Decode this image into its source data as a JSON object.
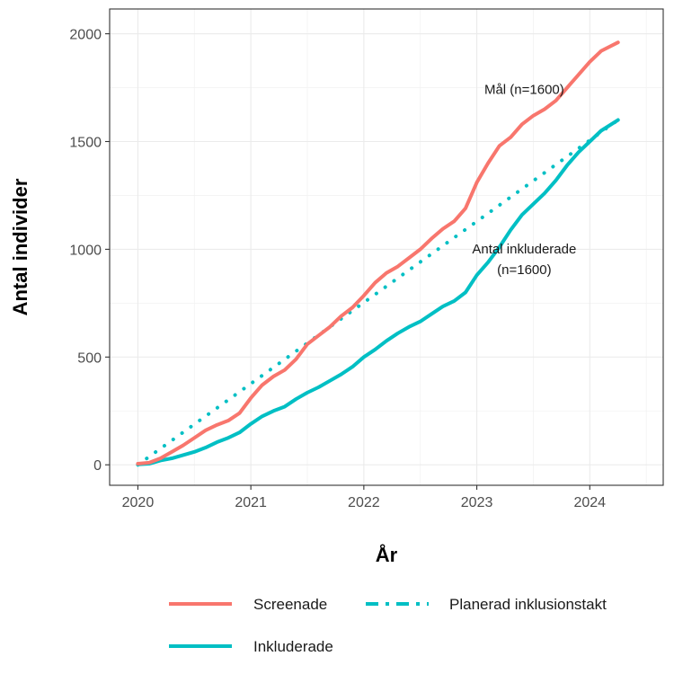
{
  "chart_data": {
    "type": "line",
    "xlabel": "År",
    "ylabel": "Antal individer",
    "xlim": [
      2019.75,
      2024.65
    ],
    "ylim": [
      -95,
      2115
    ],
    "x_ticks": [
      2020,
      2021,
      2022,
      2023,
      2024
    ],
    "y_ticks": [
      0,
      500,
      1000,
      1500,
      2000
    ],
    "x_tick_labels": [
      "2020",
      "2021",
      "2022",
      "2023",
      "2024"
    ],
    "y_tick_labels": [
      "0",
      "500",
      "1000",
      "1500",
      "2000"
    ],
    "grid": true,
    "legend_position": "bottom",
    "series": [
      {
        "name": "Screenade",
        "color": "#F8766D",
        "style": "solid",
        "points": [
          [
            2020.0,
            5
          ],
          [
            2020.1,
            10
          ],
          [
            2020.2,
            30
          ],
          [
            2020.3,
            60
          ],
          [
            2020.4,
            90
          ],
          [
            2020.5,
            125
          ],
          [
            2020.6,
            160
          ],
          [
            2020.7,
            185
          ],
          [
            2020.8,
            205
          ],
          [
            2020.9,
            240
          ],
          [
            2021.0,
            310
          ],
          [
            2021.1,
            370
          ],
          [
            2021.2,
            410
          ],
          [
            2021.3,
            440
          ],
          [
            2021.4,
            490
          ],
          [
            2021.5,
            560
          ],
          [
            2021.6,
            600
          ],
          [
            2021.7,
            640
          ],
          [
            2021.8,
            690
          ],
          [
            2021.9,
            730
          ],
          [
            2022.0,
            785
          ],
          [
            2022.1,
            845
          ],
          [
            2022.2,
            890
          ],
          [
            2022.3,
            920
          ],
          [
            2022.4,
            960
          ],
          [
            2022.5,
            1000
          ],
          [
            2022.6,
            1050
          ],
          [
            2022.7,
            1095
          ],
          [
            2022.8,
            1130
          ],
          [
            2022.9,
            1190
          ],
          [
            2023.0,
            1310
          ],
          [
            2023.1,
            1400
          ],
          [
            2023.2,
            1480
          ],
          [
            2023.3,
            1520
          ],
          [
            2023.4,
            1580
          ],
          [
            2023.5,
            1620
          ],
          [
            2023.6,
            1650
          ],
          [
            2023.7,
            1690
          ],
          [
            2023.8,
            1750
          ],
          [
            2023.9,
            1810
          ],
          [
            2024.0,
            1870
          ],
          [
            2024.1,
            1920
          ],
          [
            2024.25,
            1960
          ]
        ]
      },
      {
        "name": "Inkluderade",
        "color": "#00BFC4",
        "style": "solid",
        "points": [
          [
            2020.0,
            2
          ],
          [
            2020.1,
            5
          ],
          [
            2020.2,
            20
          ],
          [
            2020.3,
            30
          ],
          [
            2020.4,
            45
          ],
          [
            2020.5,
            60
          ],
          [
            2020.6,
            80
          ],
          [
            2020.7,
            105
          ],
          [
            2020.8,
            125
          ],
          [
            2020.9,
            150
          ],
          [
            2021.0,
            190
          ],
          [
            2021.1,
            225
          ],
          [
            2021.2,
            250
          ],
          [
            2021.3,
            270
          ],
          [
            2021.4,
            305
          ],
          [
            2021.5,
            335
          ],
          [
            2021.6,
            360
          ],
          [
            2021.7,
            390
          ],
          [
            2021.8,
            420
          ],
          [
            2021.9,
            455
          ],
          [
            2022.0,
            500
          ],
          [
            2022.1,
            535
          ],
          [
            2022.2,
            575
          ],
          [
            2022.3,
            610
          ],
          [
            2022.4,
            640
          ],
          [
            2022.5,
            665
          ],
          [
            2022.6,
            700
          ],
          [
            2022.7,
            735
          ],
          [
            2022.8,
            760
          ],
          [
            2022.9,
            800
          ],
          [
            2023.0,
            880
          ],
          [
            2023.1,
            940
          ],
          [
            2023.2,
            1010
          ],
          [
            2023.3,
            1090
          ],
          [
            2023.4,
            1160
          ],
          [
            2023.5,
            1210
          ],
          [
            2023.6,
            1260
          ],
          [
            2023.7,
            1320
          ],
          [
            2023.8,
            1390
          ],
          [
            2023.9,
            1450
          ],
          [
            2024.0,
            1500
          ],
          [
            2024.1,
            1550
          ],
          [
            2024.25,
            1600
          ]
        ]
      },
      {
        "name": "Planerad inklusionstakt",
        "color": "#00BFC4",
        "style": "dotted",
        "points": [
          [
            2020.0,
            0
          ],
          [
            2024.25,
            1600
          ]
        ]
      }
    ],
    "annotations": [
      {
        "text": "Mål (n=1600)",
        "x": 2023.42,
        "y": 1720
      },
      {
        "text": "Antal inkluderade",
        "x": 2023.42,
        "y": 980
      },
      {
        "text": "(n=1600)",
        "x": 2023.42,
        "y": 885
      }
    ]
  }
}
